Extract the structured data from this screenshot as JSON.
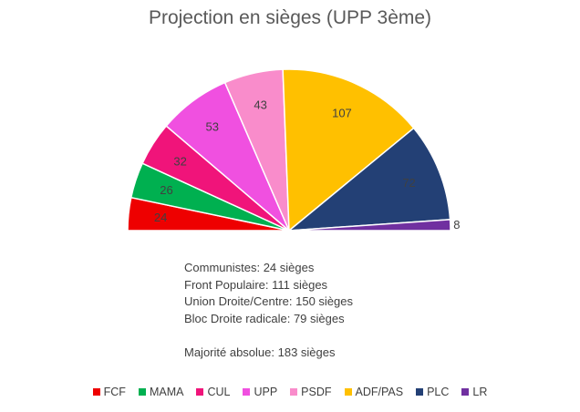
{
  "chart_data": {
    "type": "pie",
    "subtype": "semicircle",
    "title": "Projection en sièges (UPP 3ème)",
    "categories": [
      "FCF",
      "MAMA",
      "CUL",
      "UPP",
      "PSDF",
      "ADF/PAS",
      "PLC",
      "LR"
    ],
    "values": [
      24,
      26,
      32,
      53,
      43,
      107,
      72,
      8
    ],
    "value_labels": [
      "24",
      "26",
      "32",
      "53",
      "43",
      "107",
      "72",
      "8"
    ],
    "colors": [
      "#ee0000",
      "#00b050",
      "#f0147a",
      "#f050e0",
      "#f98ccb",
      "#ffc000",
      "#234075",
      "#7030a0"
    ],
    "legend_position": "bottom"
  },
  "summary": {
    "line1": "Communistes: 24 sièges",
    "line2": "Front Populaire: 111 sièges",
    "line3": "Union Droite/Centre: 150 sièges",
    "line4": "Bloc Droite radicale: 79 sièges",
    "line5": "Majorité absolue: 183 sièges"
  }
}
